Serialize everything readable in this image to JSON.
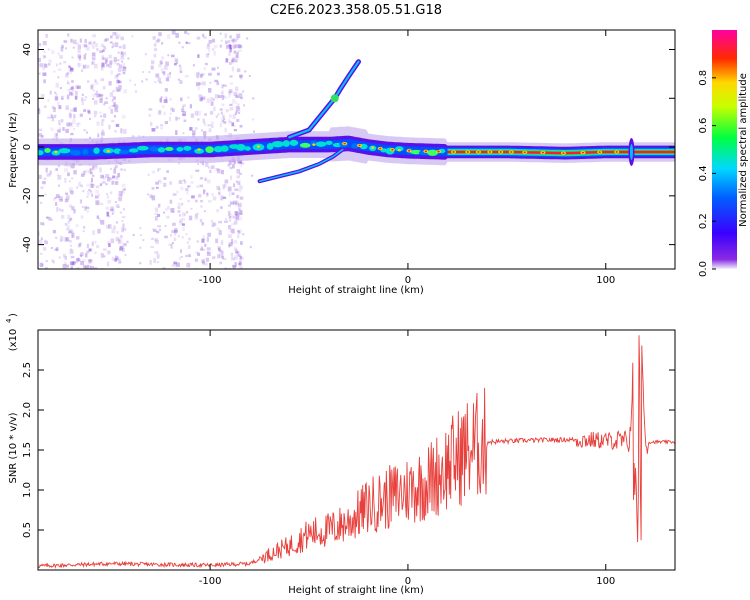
{
  "title": "C2E6.2023.358.05.51.G18",
  "chart_data": [
    {
      "type": "heatmap",
      "xlabel": "Height of straight line (km)",
      "ylabel": "Frequency (Hz)",
      "xlim": [
        -187,
        135
      ],
      "ylim": [
        -50,
        48
      ],
      "xticks": [
        -100,
        0,
        100
      ],
      "yticks": [
        -40,
        -20,
        0,
        20,
        40
      ],
      "colorbar": {
        "label": "Normalized spectral amplitude",
        "ticks": [
          0.0,
          0.2,
          0.4,
          0.6,
          0.8
        ],
        "range": [
          0,
          1
        ],
        "colormap": "rainbow (purple-blue-cyan-green-yellow-red-magenta)"
      },
      "main_trace": [
        [
          -187,
          -2
        ],
        [
          -160,
          -2
        ],
        [
          -130,
          -1
        ],
        [
          -100,
          -1
        ],
        [
          -80,
          0
        ],
        [
          -60,
          1
        ],
        [
          -40,
          1
        ],
        [
          -30,
          1.5
        ],
        [
          -20,
          0
        ],
        [
          -10,
          -1
        ],
        [
          0,
          -1.5
        ],
        [
          20,
          -2
        ],
        [
          50,
          -2
        ],
        [
          80,
          -2.5
        ],
        [
          100,
          -2
        ],
        [
          120,
          -2
        ],
        [
          135,
          -2
        ]
      ],
      "upper_branch": [
        [
          -60,
          4
        ],
        [
          -50,
          7
        ],
        [
          -45,
          12
        ],
        [
          -40,
          17
        ],
        [
          -37,
          20
        ],
        [
          -34,
          24
        ],
        [
          -30,
          29
        ],
        [
          -25,
          35
        ]
      ],
      "lower_branch": [
        [
          -75,
          -14
        ],
        [
          -65,
          -12
        ],
        [
          -55,
          -10
        ],
        [
          -45,
          -7
        ],
        [
          -38,
          -4
        ],
        [
          -33,
          -1
        ]
      ],
      "spike_at": 113
    },
    {
      "type": "line",
      "xlabel": "Height of straight line (km)",
      "ylabel": "SNR (10 * v/v)",
      "y_multiplier_label": "(x10",
      "y_multiplier_exp": "4",
      "xlim": [
        -187,
        135
      ],
      "ylim": [
        0,
        3.0
      ],
      "xticks": [
        -100,
        0,
        100
      ],
      "yticks": [
        0.5,
        1.0,
        1.5,
        2.0,
        2.5
      ],
      "series_color": "#e8403c",
      "envelope": [
        [
          -187,
          0.05
        ],
        [
          -150,
          0.08
        ],
        [
          -130,
          0.07
        ],
        [
          -100,
          0.06
        ],
        [
          -80,
          0.08
        ],
        [
          -70,
          0.2
        ],
        [
          -60,
          0.3
        ],
        [
          -50,
          0.45
        ],
        [
          -40,
          0.5
        ],
        [
          -30,
          0.6
        ],
        [
          -20,
          0.8
        ],
        [
          -10,
          0.9
        ],
        [
          0,
          1.0
        ],
        [
          10,
          1.1
        ],
        [
          20,
          1.3
        ],
        [
          30,
          1.5
        ],
        [
          40,
          1.6
        ],
        [
          60,
          1.62
        ],
        [
          80,
          1.63
        ],
        [
          100,
          1.62
        ],
        [
          110,
          1.6
        ],
        [
          112,
          1.6
        ],
        [
          114,
          2.5
        ],
        [
          116,
          0.3
        ],
        [
          118,
          2.9
        ],
        [
          120,
          1.6
        ],
        [
          135,
          1.6
        ]
      ]
    }
  ]
}
